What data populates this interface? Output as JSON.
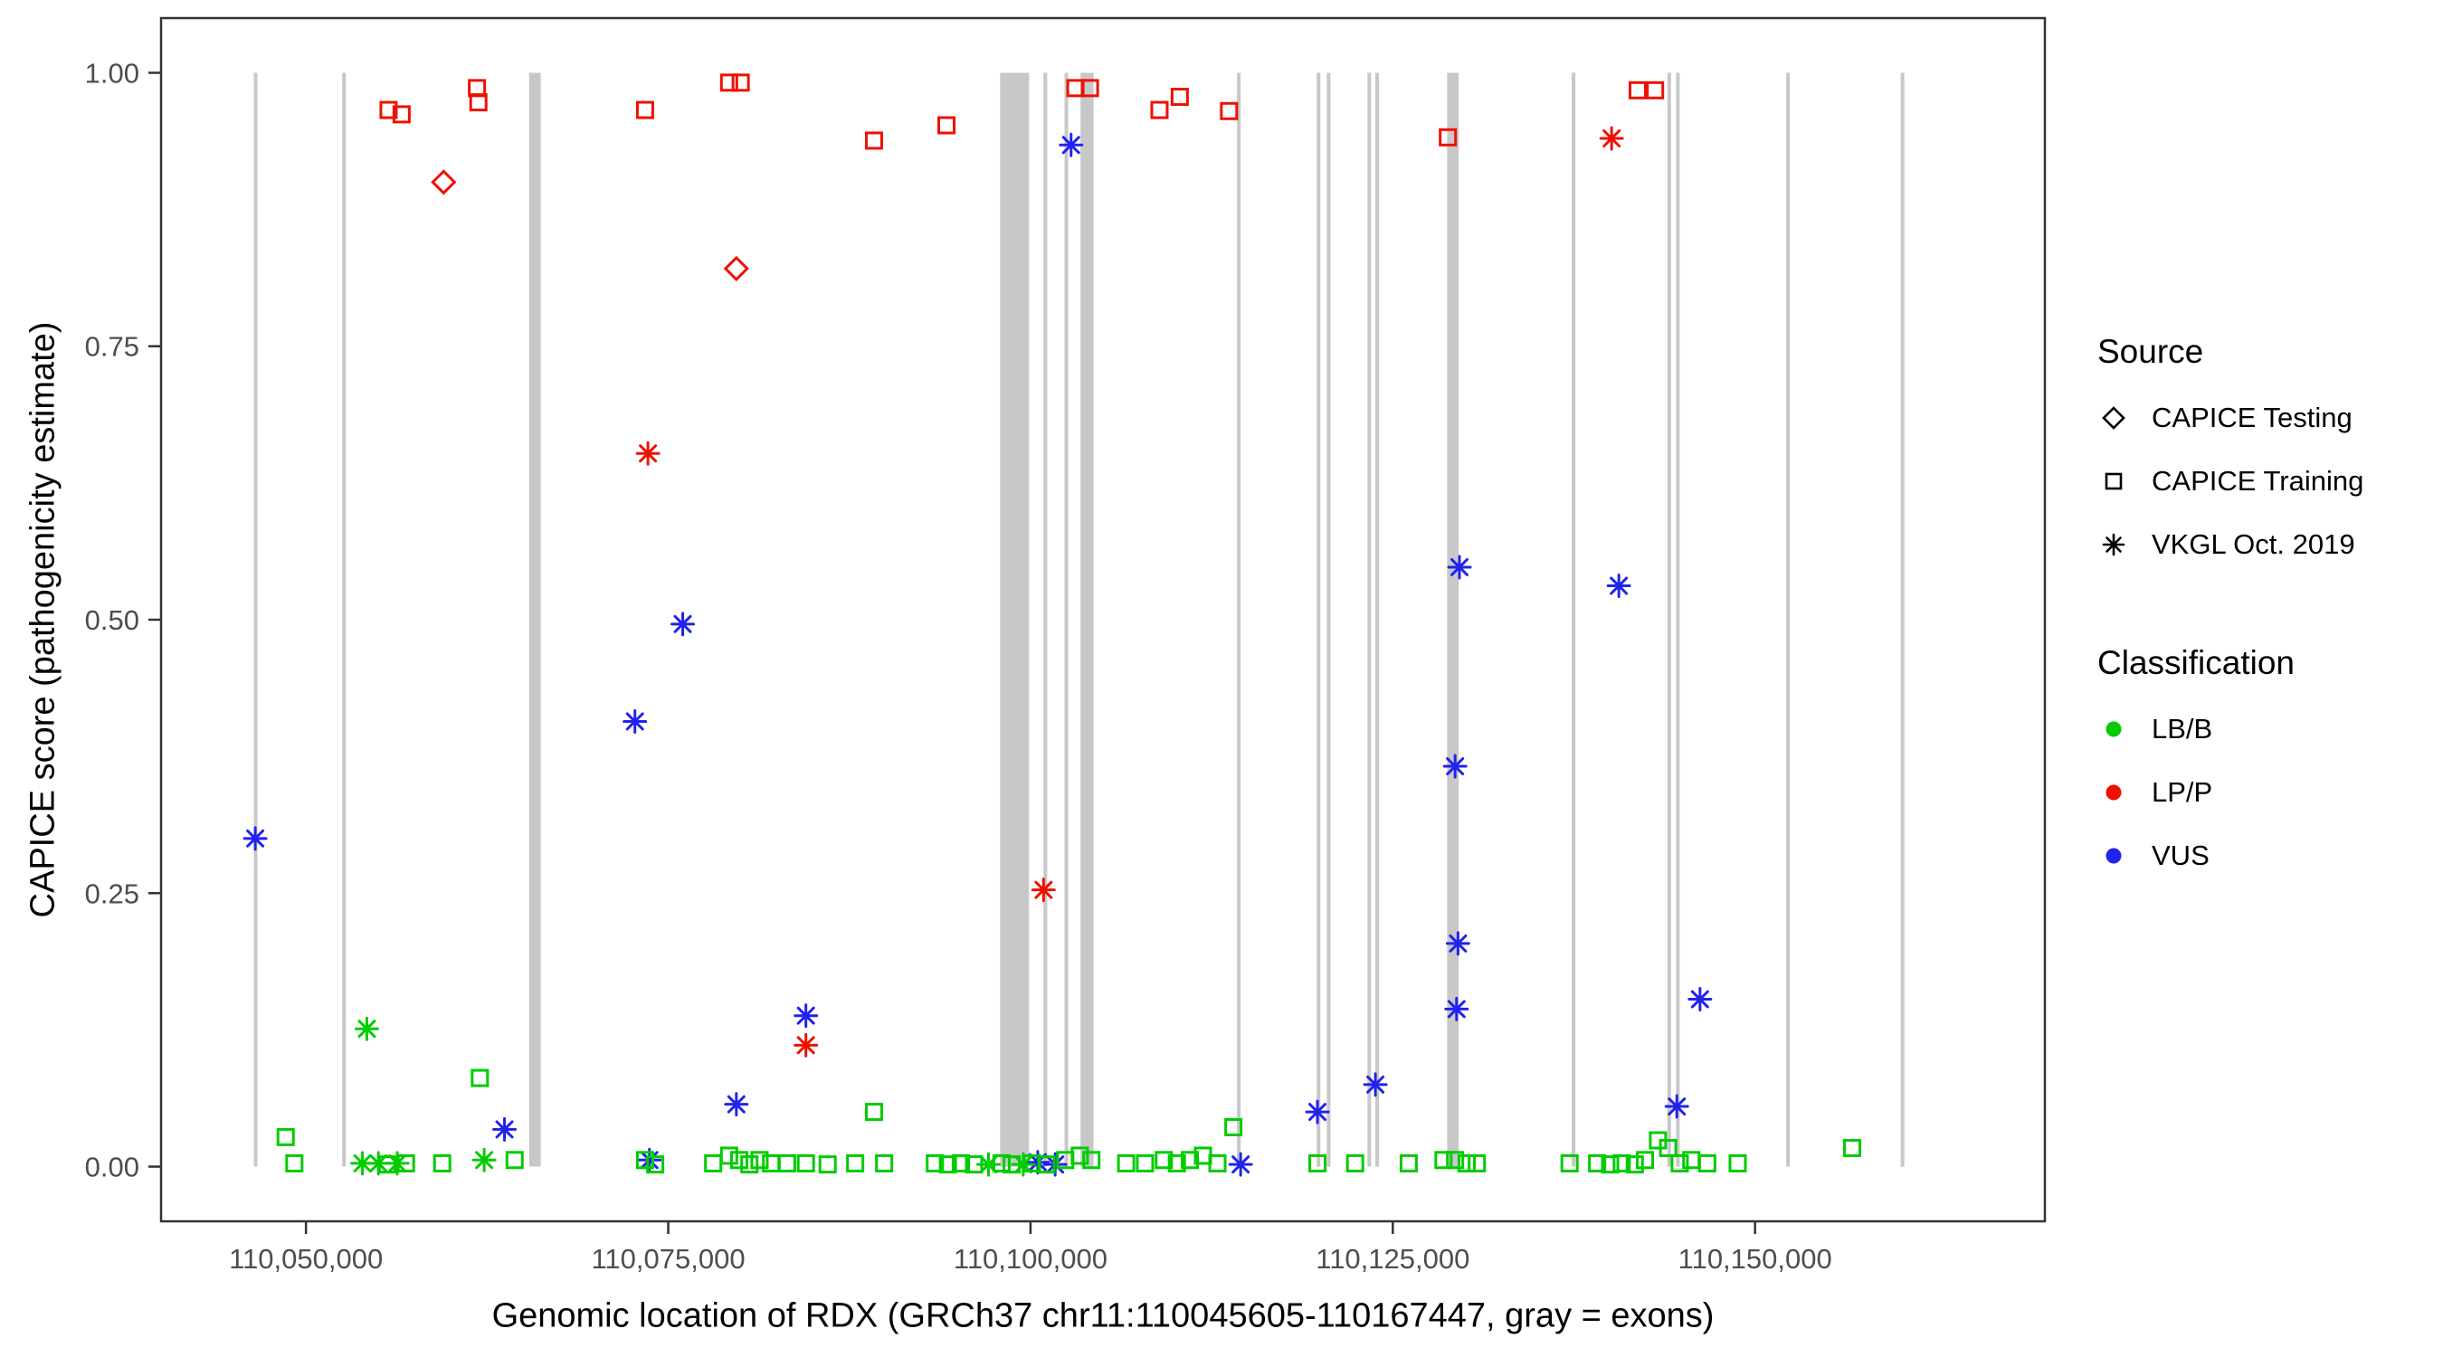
{
  "axes": {
    "x_label": "Genomic location of RDX (GRCh37 chr11:110045605-110167447, gray = exons)",
    "y_label": "CAPICE score (pathogenicity estimate)",
    "x_ticks": [
      {
        "value": 110050000,
        "label": "110,050,000"
      },
      {
        "value": 110075000,
        "label": "110,075,000"
      },
      {
        "value": 110100000,
        "label": "110,100,000"
      },
      {
        "value": 110125000,
        "label": "110,125,000"
      },
      {
        "value": 110150000,
        "label": "110,150,000"
      }
    ],
    "y_ticks": [
      {
        "value": 0.0,
        "label": "0.00"
      },
      {
        "value": 0.25,
        "label": "0.25"
      },
      {
        "value": 0.5,
        "label": "0.50"
      },
      {
        "value": 0.75,
        "label": "0.75"
      },
      {
        "value": 1.0,
        "label": "1.00"
      }
    ]
  },
  "legend": {
    "source": {
      "title": "Source",
      "items": [
        {
          "shape": "diamond",
          "label": "CAPICE Testing"
        },
        {
          "shape": "square",
          "label": "CAPICE Training"
        },
        {
          "shape": "asterisk",
          "label": "VKGL Oct. 2019"
        }
      ]
    },
    "classification": {
      "title": "Classification",
      "items": [
        {
          "color": "#00CC00",
          "label": "LB/B"
        },
        {
          "color": "#EE1100",
          "label": "LP/P"
        },
        {
          "color": "#2222EE",
          "label": "VUS"
        }
      ]
    }
  },
  "colors": {
    "classification": {
      "LB/B": "#00CC00",
      "LP/P": "#EE1100",
      "VUS": "#2222EE"
    },
    "exon": "#C8C8C8",
    "panel_border": "#333333",
    "tick_label": "#4D4D4D"
  },
  "chart_data": {
    "type": "scatter",
    "title": "",
    "xlabel": "Genomic location of RDX (GRCh37 chr11:110045605-110167447, gray = exons)",
    "ylabel": "CAPICE score (pathogenicity estimate)",
    "xlim": [
      110040000,
      110170000
    ],
    "ylim": [
      -0.05,
      1.05
    ],
    "grid": false,
    "legend_position": "right",
    "shape_by_source": {
      "CAPICE Testing": "diamond",
      "CAPICE Training": "square",
      "VKGL Oct. 2019": "asterisk"
    },
    "exons": [
      [
        110046400,
        110046650
      ],
      [
        110052500,
        110052750
      ],
      [
        110065400,
        110066200
      ],
      [
        110097900,
        110099900
      ],
      [
        110100900,
        110101150
      ],
      [
        110102350,
        110102600
      ],
      [
        110103450,
        110104350
      ],
      [
        110114250,
        110114500
      ],
      [
        110119750,
        110120000
      ],
      [
        110120450,
        110120700
      ],
      [
        110123250,
        110123500
      ],
      [
        110123800,
        110124050
      ],
      [
        110128750,
        110129550
      ],
      [
        110137350,
        110137600
      ],
      [
        110143950,
        110144200
      ],
      [
        110144550,
        110144800
      ],
      [
        110152150,
        110152400
      ],
      [
        110160050,
        110160300
      ]
    ],
    "columns": [
      "genomic_position",
      "capice_score",
      "source",
      "classification"
    ],
    "rows": [
      [
        110055700,
        0.966,
        "CAPICE Training",
        "LP/P"
      ],
      [
        110056600,
        0.962,
        "CAPICE Training",
        "LP/P"
      ],
      [
        110061800,
        0.986,
        "CAPICE Training",
        "LP/P"
      ],
      [
        110061900,
        0.973,
        "CAPICE Training",
        "LP/P"
      ],
      [
        110073400,
        0.966,
        "CAPICE Training",
        "LP/P"
      ],
      [
        110079200,
        0.991,
        "CAPICE Training",
        "LP/P"
      ],
      [
        110080000,
        0.991,
        "CAPICE Training",
        "LP/P"
      ],
      [
        110089200,
        0.938,
        "CAPICE Training",
        "LP/P"
      ],
      [
        110094200,
        0.952,
        "CAPICE Training",
        "LP/P"
      ],
      [
        110103100,
        0.986,
        "CAPICE Training",
        "LP/P"
      ],
      [
        110104100,
        0.986,
        "CAPICE Training",
        "LP/P"
      ],
      [
        110108900,
        0.966,
        "CAPICE Training",
        "LP/P"
      ],
      [
        110110300,
        0.978,
        "CAPICE Training",
        "LP/P"
      ],
      [
        110113700,
        0.965,
        "CAPICE Training",
        "LP/P"
      ],
      [
        110128800,
        0.941,
        "CAPICE Training",
        "LP/P"
      ],
      [
        110141900,
        0.984,
        "CAPICE Training",
        "LP/P"
      ],
      [
        110143100,
        0.984,
        "CAPICE Training",
        "LP/P"
      ],
      [
        110059500,
        0.9,
        "CAPICE Testing",
        "LP/P"
      ],
      [
        110079700,
        0.821,
        "CAPICE Testing",
        "LP/P"
      ],
      [
        110073600,
        0.652,
        "VKGL Oct. 2019",
        "LP/P"
      ],
      [
        110084500,
        0.111,
        "VKGL Oct. 2019",
        "LP/P"
      ],
      [
        110100900,
        0.253,
        "VKGL Oct. 2019",
        "LP/P"
      ],
      [
        110140100,
        0.94,
        "VKGL Oct. 2019",
        "LP/P"
      ],
      [
        110046500,
        0.3,
        "VKGL Oct. 2019",
        "VUS"
      ],
      [
        110063700,
        0.034,
        "VKGL Oct. 2019",
        "VUS"
      ],
      [
        110072700,
        0.407,
        "VKGL Oct. 2019",
        "VUS"
      ],
      [
        110073700,
        0.006,
        "VKGL Oct. 2019",
        "VUS"
      ],
      [
        110076000,
        0.496,
        "VKGL Oct. 2019",
        "VUS"
      ],
      [
        110079700,
        0.057,
        "VKGL Oct. 2019",
        "VUS"
      ],
      [
        110084500,
        0.138,
        "VKGL Oct. 2019",
        "VUS"
      ],
      [
        110100500,
        0.004,
        "VKGL Oct. 2019",
        "VUS"
      ],
      [
        110101700,
        0.002,
        "VKGL Oct. 2019",
        "VUS"
      ],
      [
        110102800,
        0.934,
        "VKGL Oct. 2019",
        "VUS"
      ],
      [
        110114500,
        0.002,
        "VKGL Oct. 2019",
        "VUS"
      ],
      [
        110119800,
        0.05,
        "VKGL Oct. 2019",
        "VUS"
      ],
      [
        110123800,
        0.075,
        "VKGL Oct. 2019",
        "VUS"
      ],
      [
        110129300,
        0.366,
        "VKGL Oct. 2019",
        "VUS"
      ],
      [
        110129400,
        0.144,
        "VKGL Oct. 2019",
        "VUS"
      ],
      [
        110129500,
        0.204,
        "VKGL Oct. 2019",
        "VUS"
      ],
      [
        110129600,
        0.548,
        "VKGL Oct. 2019",
        "VUS"
      ],
      [
        110140600,
        0.531,
        "VKGL Oct. 2019",
        "VUS"
      ],
      [
        110144600,
        0.055,
        "VKGL Oct. 2019",
        "VUS"
      ],
      [
        110146200,
        0.153,
        "VKGL Oct. 2019",
        "VUS"
      ],
      [
        110054200,
        0.126,
        "VKGL Oct. 2019",
        "LB/B"
      ],
      [
        110053900,
        0.003,
        "VKGL Oct. 2019",
        "LB/B"
      ],
      [
        110055000,
        0.003,
        "VKGL Oct. 2019",
        "LB/B"
      ],
      [
        110056300,
        0.003,
        "VKGL Oct. 2019",
        "LB/B"
      ],
      [
        110062300,
        0.006,
        "VKGL Oct. 2019",
        "LB/B"
      ],
      [
        110097100,
        0.002,
        "VKGL Oct. 2019",
        "LB/B"
      ],
      [
        110099500,
        0.002,
        "VKGL Oct. 2019",
        "LB/B"
      ],
      [
        110048600,
        0.027,
        "CAPICE Training",
        "LB/B"
      ],
      [
        110049200,
        0.003,
        "CAPICE Training",
        "LB/B"
      ],
      [
        110055600,
        0.002,
        "CAPICE Training",
        "LB/B"
      ],
      [
        110056900,
        0.003,
        "CAPICE Training",
        "LB/B"
      ],
      [
        110059400,
        0.003,
        "CAPICE Training",
        "LB/B"
      ],
      [
        110062000,
        0.081,
        "CAPICE Training",
        "LB/B"
      ],
      [
        110064400,
        0.006,
        "CAPICE Training",
        "LB/B"
      ],
      [
        110073400,
        0.006,
        "CAPICE Training",
        "LB/B"
      ],
      [
        110074100,
        0.002,
        "CAPICE Training",
        "LB/B"
      ],
      [
        110078100,
        0.003,
        "CAPICE Training",
        "LB/B"
      ],
      [
        110079200,
        0.01,
        "CAPICE Training",
        "LB/B"
      ],
      [
        110079900,
        0.006,
        "CAPICE Training",
        "LB/B"
      ],
      [
        110080600,
        0.002,
        "CAPICE Training",
        "LB/B"
      ],
      [
        110081300,
        0.006,
        "CAPICE Training",
        "LB/B"
      ],
      [
        110082100,
        0.003,
        "CAPICE Training",
        "LB/B"
      ],
      [
        110083200,
        0.003,
        "CAPICE Training",
        "LB/B"
      ],
      [
        110084500,
        0.003,
        "CAPICE Training",
        "LB/B"
      ],
      [
        110086000,
        0.002,
        "CAPICE Training",
        "LB/B"
      ],
      [
        110087900,
        0.003,
        "CAPICE Training",
        "LB/B"
      ],
      [
        110089200,
        0.05,
        "CAPICE Training",
        "LB/B"
      ],
      [
        110089900,
        0.003,
        "CAPICE Training",
        "LB/B"
      ],
      [
        110093400,
        0.003,
        "CAPICE Training",
        "LB/B"
      ],
      [
        110094300,
        0.002,
        "CAPICE Training",
        "LB/B"
      ],
      [
        110095200,
        0.003,
        "CAPICE Training",
        "LB/B"
      ],
      [
        110096100,
        0.002,
        "CAPICE Training",
        "LB/B"
      ],
      [
        110098000,
        0.003,
        "CAPICE Training",
        "LB/B"
      ],
      [
        110098700,
        0.002,
        "CAPICE Training",
        "LB/B"
      ],
      [
        110100100,
        0.003,
        "CAPICE Training",
        "LB/B"
      ],
      [
        110101100,
        0.002,
        "CAPICE Training",
        "LB/B"
      ],
      [
        110102400,
        0.006,
        "CAPICE Training",
        "LB/B"
      ],
      [
        110103400,
        0.01,
        "CAPICE Training",
        "LB/B"
      ],
      [
        110104200,
        0.006,
        "CAPICE Training",
        "LB/B"
      ],
      [
        110106600,
        0.003,
        "CAPICE Training",
        "LB/B"
      ],
      [
        110107900,
        0.003,
        "CAPICE Training",
        "LB/B"
      ],
      [
        110109200,
        0.006,
        "CAPICE Training",
        "LB/B"
      ],
      [
        110110100,
        0.003,
        "CAPICE Training",
        "LB/B"
      ],
      [
        110111000,
        0.006,
        "CAPICE Training",
        "LB/B"
      ],
      [
        110111900,
        0.01,
        "CAPICE Training",
        "LB/B"
      ],
      [
        110112900,
        0.003,
        "CAPICE Training",
        "LB/B"
      ],
      [
        110114000,
        0.036,
        "CAPICE Training",
        "LB/B"
      ],
      [
        110119800,
        0.003,
        "CAPICE Training",
        "LB/B"
      ],
      [
        110122400,
        0.003,
        "CAPICE Training",
        "LB/B"
      ],
      [
        110126100,
        0.003,
        "CAPICE Training",
        "LB/B"
      ],
      [
        110128500,
        0.006,
        "CAPICE Training",
        "LB/B"
      ],
      [
        110129300,
        0.006,
        "CAPICE Training",
        "LB/B"
      ],
      [
        110130100,
        0.003,
        "CAPICE Training",
        "LB/B"
      ],
      [
        110130800,
        0.003,
        "CAPICE Training",
        "LB/B"
      ],
      [
        110137200,
        0.003,
        "CAPICE Training",
        "LB/B"
      ],
      [
        110139100,
        0.003,
        "CAPICE Training",
        "LB/B"
      ],
      [
        110140000,
        0.002,
        "CAPICE Training",
        "LB/B"
      ],
      [
        110140800,
        0.003,
        "CAPICE Training",
        "LB/B"
      ],
      [
        110141700,
        0.002,
        "CAPICE Training",
        "LB/B"
      ],
      [
        110142400,
        0.006,
        "CAPICE Training",
        "LB/B"
      ],
      [
        110143300,
        0.024,
        "CAPICE Training",
        "LB/B"
      ],
      [
        110144000,
        0.017,
        "CAPICE Training",
        "LB/B"
      ],
      [
        110144800,
        0.003,
        "CAPICE Training",
        "LB/B"
      ],
      [
        110145600,
        0.006,
        "CAPICE Training",
        "LB/B"
      ],
      [
        110146700,
        0.003,
        "CAPICE Training",
        "LB/B"
      ],
      [
        110148800,
        0.003,
        "CAPICE Training",
        "LB/B"
      ],
      [
        110156700,
        0.017,
        "CAPICE Training",
        "LB/B"
      ]
    ]
  }
}
